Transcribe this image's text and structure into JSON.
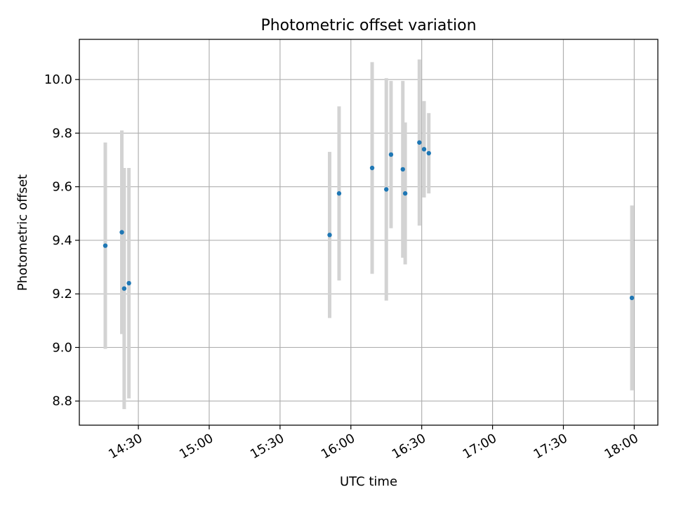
{
  "chart_data": {
    "type": "scatter",
    "title": "Photometric offset variation",
    "xlabel": "UTC time",
    "ylabel": "Photometric offset",
    "x_ticks": [
      "14:30",
      "15:00",
      "15:30",
      "16:00",
      "16:30",
      "17:00",
      "17:30",
      "18:00"
    ],
    "y_ticks": [
      "8.8",
      "9.0",
      "9.2",
      "9.4",
      "9.6",
      "9.8",
      "10.0"
    ],
    "xlim": [
      "14:05",
      "18:10"
    ],
    "ylim": [
      8.71,
      10.15
    ],
    "grid": true,
    "errorbar_color": "#d3d3d3",
    "marker_color": "#1f77b4",
    "points": [
      {
        "x": "14:16",
        "y": 9.38,
        "err": 0.385
      },
      {
        "x": "14:23",
        "y": 9.43,
        "err": 0.38
      },
      {
        "x": "14:24",
        "y": 9.22,
        "err": 0.45
      },
      {
        "x": "14:26",
        "y": 9.24,
        "err": 0.43
      },
      {
        "x": "15:51",
        "y": 9.42,
        "err": 0.31
      },
      {
        "x": "15:55",
        "y": 9.575,
        "err": 0.325
      },
      {
        "x": "16:09",
        "y": 9.67,
        "err": 0.395
      },
      {
        "x": "16:15",
        "y": 9.59,
        "err": 0.415
      },
      {
        "x": "16:17",
        "y": 9.72,
        "err": 0.275
      },
      {
        "x": "16:22",
        "y": 9.665,
        "err": 0.33
      },
      {
        "x": "16:23",
        "y": 9.575,
        "err": 0.265
      },
      {
        "x": "16:29",
        "y": 9.765,
        "err": 0.31
      },
      {
        "x": "16:31",
        "y": 9.74,
        "err": 0.18
      },
      {
        "x": "16:33",
        "y": 9.725,
        "err": 0.15
      },
      {
        "x": "17:59",
        "y": 9.185,
        "err": 0.345
      }
    ]
  }
}
